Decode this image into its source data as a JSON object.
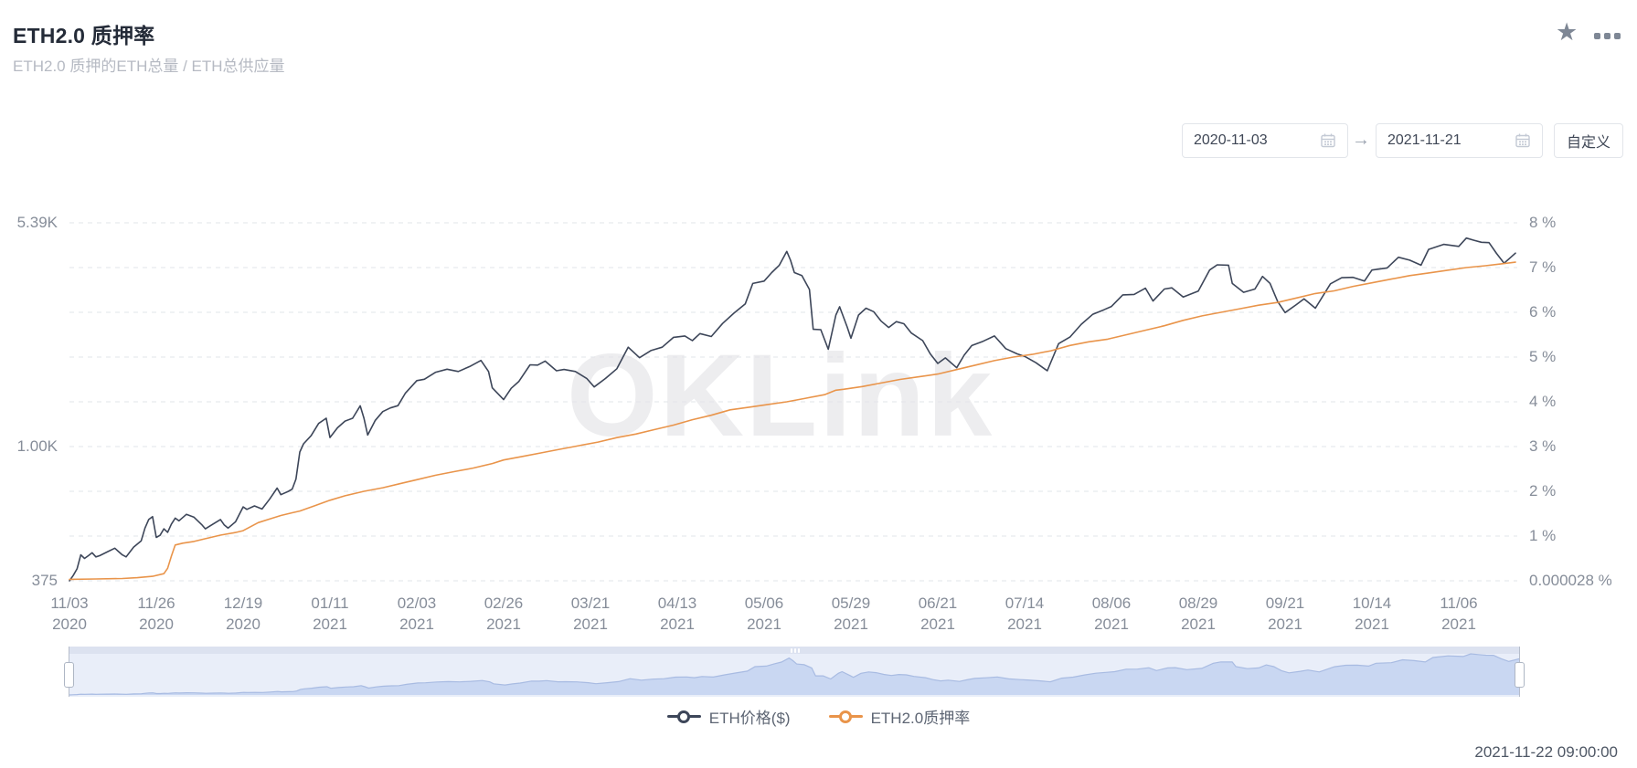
{
  "header": {
    "title": "ETH2.0 质押率",
    "subtitle": "ETH2.0 质押的ETH总量 / ETH总供应量"
  },
  "toolbar": {
    "favorite_icon": "star-icon",
    "more_icon": "ellipsis-icon"
  },
  "controls": {
    "date_from": "2020-11-03",
    "date_to": "2021-11-21",
    "arrow": "→",
    "custom_button": "自定义"
  },
  "watermark": "OKLink",
  "legend": [
    {
      "label": "ETH价格($)",
      "color": "#3d4659"
    },
    {
      "label": "ETH2.0质押率",
      "color": "#e9944a"
    }
  ],
  "footer": {
    "timestamp": "2021-11-22 09:00:00"
  },
  "chart_data": {
    "type": "line",
    "title": "ETH2.0 质押率",
    "grid": "dashed-horizontal",
    "legend_position": "bottom-center",
    "x_axis": {
      "start": "2020-11-03",
      "end": "2021-11-21",
      "total_days": 383,
      "ticks": [
        {
          "day": 0,
          "label": [
            "11/03",
            "2020"
          ]
        },
        {
          "day": 23,
          "label": [
            "11/26",
            "2020"
          ]
        },
        {
          "day": 46,
          "label": [
            "12/19",
            "2020"
          ]
        },
        {
          "day": 69,
          "label": [
            "01/11",
            "2021"
          ]
        },
        {
          "day": 92,
          "label": [
            "02/03",
            "2021"
          ]
        },
        {
          "day": 115,
          "label": [
            "02/26",
            "2021"
          ]
        },
        {
          "day": 138,
          "label": [
            "03/21",
            "2021"
          ]
        },
        {
          "day": 161,
          "label": [
            "04/13",
            "2021"
          ]
        },
        {
          "day": 184,
          "label": [
            "05/06",
            "2021"
          ]
        },
        {
          "day": 207,
          "label": [
            "05/29",
            "2021"
          ]
        },
        {
          "day": 230,
          "label": [
            "06/21",
            "2021"
          ]
        },
        {
          "day": 253,
          "label": [
            "07/14",
            "2021"
          ]
        },
        {
          "day": 276,
          "label": [
            "08/06",
            "2021"
          ]
        },
        {
          "day": 299,
          "label": [
            "08/29",
            "2021"
          ]
        },
        {
          "day": 322,
          "label": [
            "09/21",
            "2021"
          ]
        },
        {
          "day": 345,
          "label": [
            "10/14",
            "2021"
          ]
        },
        {
          "day": 368,
          "label": [
            "11/06",
            "2021"
          ]
        }
      ]
    },
    "y_left": {
      "name": "ETH价格($)",
      "scale": "log",
      "min": 375,
      "max": 5390,
      "ticks": [
        {
          "row": 0,
          "label": "5.39K"
        },
        {
          "row": 5,
          "label": "1.00K"
        },
        {
          "row": 8,
          "label": "375"
        }
      ]
    },
    "y_right": {
      "name": "ETH2.0质押率",
      "scale": "linear",
      "min": 2.8e-05,
      "max": 8,
      "ticks": [
        {
          "row": 0,
          "label": "8 %"
        },
        {
          "row": 1,
          "label": "7 %"
        },
        {
          "row": 2,
          "label": "6 %"
        },
        {
          "row": 3,
          "label": "5 %"
        },
        {
          "row": 4,
          "label": "4 %"
        },
        {
          "row": 5,
          "label": "3 %"
        },
        {
          "row": 6,
          "label": "2 %"
        },
        {
          "row": 7,
          "label": "1 %"
        },
        {
          "row": 8,
          "label": "0.000028 %"
        }
      ]
    },
    "series": [
      {
        "name": "ETH价格($)",
        "axis": "left",
        "color": "#3d4659",
        "points": [
          [
            0,
            375
          ],
          [
            1,
            390
          ],
          [
            2,
            410
          ],
          [
            3,
            455
          ],
          [
            4,
            443
          ],
          [
            5,
            452
          ],
          [
            6,
            462
          ],
          [
            7,
            448
          ],
          [
            8,
            452
          ],
          [
            10,
            465
          ],
          [
            12,
            478
          ],
          [
            13,
            466
          ],
          [
            14,
            455
          ],
          [
            15,
            448
          ],
          [
            17,
            482
          ],
          [
            19,
            505
          ],
          [
            20,
            555
          ],
          [
            21,
            592
          ],
          [
            22,
            605
          ],
          [
            23,
            518
          ],
          [
            24,
            526
          ],
          [
            25,
            552
          ],
          [
            26,
            538
          ],
          [
            27,
            572
          ],
          [
            28,
            598
          ],
          [
            29,
            586
          ],
          [
            31,
            615
          ],
          [
            33,
            602
          ],
          [
            35,
            570
          ],
          [
            36,
            552
          ],
          [
            38,
            572
          ],
          [
            40,
            592
          ],
          [
            41,
            568
          ],
          [
            42,
            555
          ],
          [
            44,
            582
          ],
          [
            46,
            650
          ],
          [
            47,
            638
          ],
          [
            49,
            655
          ],
          [
            51,
            640
          ],
          [
            53,
            688
          ],
          [
            55,
            748
          ],
          [
            56,
            712
          ],
          [
            58,
            730
          ],
          [
            59,
            742
          ],
          [
            60,
            800
          ],
          [
            61,
            978
          ],
          [
            62,
            1040
          ],
          [
            64,
            1105
          ],
          [
            66,
            1210
          ],
          [
            68,
            1258
          ],
          [
            69,
            1090
          ],
          [
            71,
            1172
          ],
          [
            73,
            1232
          ],
          [
            75,
            1258
          ],
          [
            77,
            1380
          ],
          [
            78,
            1258
          ],
          [
            79,
            1110
          ],
          [
            81,
            1238
          ],
          [
            83,
            1322
          ],
          [
            85,
            1358
          ],
          [
            87,
            1382
          ],
          [
            89,
            1518
          ],
          [
            92,
            1665
          ],
          [
            94,
            1682
          ],
          [
            97,
            1772
          ],
          [
            100,
            1812
          ],
          [
            103,
            1782
          ],
          [
            106,
            1848
          ],
          [
            109,
            1935
          ],
          [
            111,
            1782
          ],
          [
            112,
            1578
          ],
          [
            115,
            1445
          ],
          [
            117,
            1572
          ],
          [
            119,
            1652
          ],
          [
            122,
            1872
          ],
          [
            124,
            1868
          ],
          [
            126,
            1925
          ],
          [
            129,
            1792
          ],
          [
            131,
            1808
          ],
          [
            134,
            1782
          ],
          [
            137,
            1692
          ],
          [
            139,
            1588
          ],
          [
            142,
            1692
          ],
          [
            145,
            1818
          ],
          [
            148,
            2135
          ],
          [
            151,
            1975
          ],
          [
            154,
            2082
          ],
          [
            157,
            2135
          ],
          [
            160,
            2298
          ],
          [
            163,
            2322
          ],
          [
            165,
            2242
          ],
          [
            167,
            2362
          ],
          [
            170,
            2312
          ],
          [
            173,
            2548
          ],
          [
            176,
            2752
          ],
          [
            179,
            2948
          ],
          [
            181,
            3432
          ],
          [
            184,
            3492
          ],
          [
            186,
            3722
          ],
          [
            188,
            3925
          ],
          [
            190,
            4358
          ],
          [
            191,
            4080
          ],
          [
            192,
            3722
          ],
          [
            194,
            3642
          ],
          [
            196,
            3282
          ],
          [
            197,
            2440
          ],
          [
            199,
            2432
          ],
          [
            201,
            2102
          ],
          [
            203,
            2712
          ],
          [
            204,
            2885
          ],
          [
            206,
            2482
          ],
          [
            207,
            2282
          ],
          [
            209,
            2712
          ],
          [
            211,
            2855
          ],
          [
            213,
            2782
          ],
          [
            215,
            2592
          ],
          [
            217,
            2472
          ],
          [
            219,
            2582
          ],
          [
            221,
            2542
          ],
          [
            223,
            2372
          ],
          [
            226,
            2242
          ],
          [
            228,
            2032
          ],
          [
            230,
            1892
          ],
          [
            232,
            1972
          ],
          [
            235,
            1832
          ],
          [
            237,
            2012
          ],
          [
            239,
            2162
          ],
          [
            242,
            2232
          ],
          [
            245,
            2322
          ],
          [
            248,
            2112
          ],
          [
            251,
            2032
          ],
          [
            253,
            1995
          ],
          [
            256,
            1902
          ],
          [
            259,
            1792
          ],
          [
            262,
            2192
          ],
          [
            265,
            2302
          ],
          [
            268,
            2532
          ],
          [
            271,
            2725
          ],
          [
            274,
            2822
          ],
          [
            276,
            2892
          ],
          [
            279,
            3152
          ],
          [
            282,
            3162
          ],
          [
            285,
            3312
          ],
          [
            287,
            3012
          ],
          [
            290,
            3292
          ],
          [
            292,
            3322
          ],
          [
            295,
            3102
          ],
          [
            299,
            3242
          ],
          [
            302,
            3792
          ],
          [
            304,
            3942
          ],
          [
            307,
            3932
          ],
          [
            308,
            3432
          ],
          [
            311,
            3212
          ],
          [
            314,
            3292
          ],
          [
            316,
            3615
          ],
          [
            318,
            3435
          ],
          [
            320,
            3002
          ],
          [
            322,
            2762
          ],
          [
            325,
            2932
          ],
          [
            327,
            3062
          ],
          [
            330,
            2855
          ],
          [
            334,
            3422
          ],
          [
            337,
            3582
          ],
          [
            340,
            3592
          ],
          [
            343,
            3492
          ],
          [
            345,
            3792
          ],
          [
            349,
            3852
          ],
          [
            352,
            4172
          ],
          [
            355,
            4082
          ],
          [
            358,
            3932
          ],
          [
            360,
            4422
          ],
          [
            364,
            4592
          ],
          [
            368,
            4522
          ],
          [
            370,
            4812
          ],
          [
            372,
            4732
          ],
          [
            374,
            4662
          ],
          [
            376,
            4652
          ],
          [
            378,
            4292
          ],
          [
            380,
            3992
          ],
          [
            383,
            4302
          ]
        ]
      },
      {
        "name": "ETH2.0质押率",
        "axis": "right",
        "color": "#e9944a",
        "points": [
          [
            0,
            0.032
          ],
          [
            7,
            0.04
          ],
          [
            14,
            0.05
          ],
          [
            18,
            0.07
          ],
          [
            22,
            0.1
          ],
          [
            25,
            0.16
          ],
          [
            26,
            0.28
          ],
          [
            27,
            0.55
          ],
          [
            28,
            0.8
          ],
          [
            30,
            0.84
          ],
          [
            33,
            0.88
          ],
          [
            36,
            0.94
          ],
          [
            40,
            1.02
          ],
          [
            44,
            1.08
          ],
          [
            46,
            1.12
          ],
          [
            50,
            1.3
          ],
          [
            53,
            1.38
          ],
          [
            56,
            1.46
          ],
          [
            59,
            1.52
          ],
          [
            61,
            1.56
          ],
          [
            65,
            1.68
          ],
          [
            69,
            1.8
          ],
          [
            73,
            1.9
          ],
          [
            78,
            2.0
          ],
          [
            83,
            2.08
          ],
          [
            88,
            2.18
          ],
          [
            92,
            2.26
          ],
          [
            97,
            2.36
          ],
          [
            102,
            2.44
          ],
          [
            107,
            2.52
          ],
          [
            112,
            2.62
          ],
          [
            115,
            2.7
          ],
          [
            120,
            2.78
          ],
          [
            125,
            2.86
          ],
          [
            130,
            2.94
          ],
          [
            135,
            3.02
          ],
          [
            140,
            3.1
          ],
          [
            145,
            3.2
          ],
          [
            150,
            3.28
          ],
          [
            155,
            3.38
          ],
          [
            160,
            3.48
          ],
          [
            165,
            3.6
          ],
          [
            170,
            3.7
          ],
          [
            175,
            3.82
          ],
          [
            180,
            3.88
          ],
          [
            185,
            3.94
          ],
          [
            190,
            4.0
          ],
          [
            195,
            4.08
          ],
          [
            200,
            4.16
          ],
          [
            203,
            4.26
          ],
          [
            205,
            4.28
          ],
          [
            210,
            4.34
          ],
          [
            215,
            4.42
          ],
          [
            220,
            4.5
          ],
          [
            225,
            4.56
          ],
          [
            230,
            4.62
          ],
          [
            235,
            4.72
          ],
          [
            240,
            4.82
          ],
          [
            245,
            4.92
          ],
          [
            250,
            5.0
          ],
          [
            255,
            5.06
          ],
          [
            260,
            5.14
          ],
          [
            265,
            5.26
          ],
          [
            270,
            5.34
          ],
          [
            275,
            5.4
          ],
          [
            280,
            5.5
          ],
          [
            285,
            5.6
          ],
          [
            290,
            5.7
          ],
          [
            295,
            5.82
          ],
          [
            300,
            5.92
          ],
          [
            305,
            6.0
          ],
          [
            310,
            6.08
          ],
          [
            315,
            6.16
          ],
          [
            320,
            6.22
          ],
          [
            325,
            6.32
          ],
          [
            330,
            6.42
          ],
          [
            335,
            6.48
          ],
          [
            340,
            6.58
          ],
          [
            345,
            6.66
          ],
          [
            350,
            6.74
          ],
          [
            355,
            6.82
          ],
          [
            360,
            6.88
          ],
          [
            365,
            6.94
          ],
          [
            370,
            7.0
          ],
          [
            375,
            7.04
          ],
          [
            379,
            7.08
          ],
          [
            383,
            7.12
          ]
        ]
      }
    ],
    "dataZoom": {
      "range_selected": "full",
      "mini_chart_series": "ETH价格($)"
    }
  }
}
